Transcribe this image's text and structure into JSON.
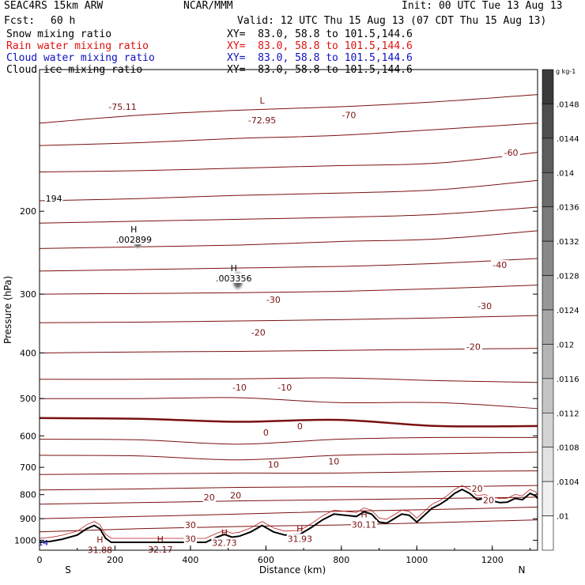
{
  "header": {
    "title": "SEAC4RS 15km ARW",
    "org": "NCAR/MMM",
    "init": "Init: 00 UTC Tue 13 Aug 13",
    "fcst_label": "Fcst:",
    "fcst_value": "60 h",
    "valid": "Valid: 12 UTC Thu 15 Aug 13 (07 CDT Thu 15 Aug 13)"
  },
  "fields": [
    {
      "name": "Snow mixing ratio",
      "xy": "XY=  83.0, 58.8 to 101.5,144.6",
      "color": "#000000"
    },
    {
      "name": "Rain water mixing ratio",
      "xy": "XY=  83.0, 58.8 to 101.5,144.6",
      "color": "#e01010"
    },
    {
      "name": "Cloud water mixing ratio",
      "xy": "XY=  83.0, 58.8 to 101.5,144.6",
      "color": "#1010c0"
    },
    {
      "name": "Cloud ice mixing ratio",
      "xy": "XY=  83.0, 58.8 to 101.5,144.6",
      "color": "#000000"
    }
  ],
  "chart_data": {
    "type": "line",
    "xlabel": "Distance (km)",
    "ylabel": "Pressure (hPa)",
    "xlim": [
      0,
      1320
    ],
    "ylim": [
      1050,
      100
    ],
    "y_log": true,
    "x_ticks": [
      "0",
      "200",
      "400",
      "600",
      "800",
      "1000",
      "1200"
    ],
    "y_ticks": [
      "200",
      "300",
      "400",
      "500",
      "600",
      "700",
      "800",
      "900",
      "1000"
    ],
    "x_end_labels": {
      "left": "S",
      "right": "N"
    },
    "isotherm_color": "#7a1010",
    "isotherms": [
      {
        "p": [
          130,
          125,
          122,
          120,
          117,
          113
        ],
        "lw": 1
      },
      {
        "p": [
          145,
          143,
          140,
          138,
          134,
          130
        ],
        "lw": 1
      },
      {
        "p": [
          165,
          164,
          162,
          160,
          158,
          150
        ],
        "lw": 1
      },
      {
        "p": [
          190,
          188,
          185,
          183,
          180,
          172
        ],
        "lw": 1
      },
      {
        "p": [
          212,
          210,
          208,
          206,
          203,
          196
        ],
        "lw": 1
      },
      {
        "p": [
          240,
          238,
          236,
          232,
          229,
          220
        ],
        "lw": 1
      },
      {
        "p": [
          268,
          266,
          264,
          262,
          258,
          252
        ],
        "lw": 1
      },
      {
        "p": [
          300,
          299,
          298,
          296,
          292,
          287
        ],
        "lw": 1
      },
      {
        "p": [
          345,
          344,
          342,
          340,
          337,
          333
        ],
        "lw": 1
      },
      {
        "p": [
          400,
          398,
          397,
          395,
          393,
          391
        ],
        "lw": 1
      },
      {
        "p": [
          455,
          455,
          454,
          452,
          458,
          462
        ],
        "lw": 1
      },
      {
        "p": [
          500,
          500,
          498,
          510,
          510,
          525
        ],
        "lw": 1
      },
      {
        "p": [
          550,
          552,
          560,
          555,
          572,
          572
        ],
        "lw": 2.5
      },
      {
        "p": [
          610,
          612,
          625,
          610,
          605,
          605
        ],
        "lw": 1
      },
      {
        "p": [
          660,
          662,
          675,
          660,
          655,
          650
        ],
        "lw": 1
      },
      {
        "p": [
          725,
          722,
          720,
          720,
          715,
          712
        ],
        "lw": 1
      },
      {
        "p": [
          782,
          778,
          772,
          770,
          770,
          765
        ],
        "lw": 1
      },
      {
        "p": [
          838,
          832,
          825,
          820,
          815,
          810
        ],
        "lw": 1
      },
      {
        "p": [
          900,
          890,
          880,
          868,
          860,
          850
        ],
        "lw": 1
      },
      {
        "p": [
          960,
          945,
          935,
          928,
          917,
          905
        ],
        "lw": 1
      }
    ],
    "contour_labels": [
      {
        "text": "-75.11",
        "x": 220,
        "p": 120
      },
      {
        "text": "-72.95",
        "x": 590,
        "p": 128
      },
      {
        "text": "-70",
        "x": 820,
        "p": 125
      },
      {
        "text": "-60",
        "x": 1250,
        "p": 150
      },
      {
        "text": "-40",
        "x": 1220,
        "p": 260
      },
      {
        "text": "-30",
        "x": 620,
        "p": 308
      },
      {
        "text": "-30",
        "x": 1180,
        "p": 318
      },
      {
        "text": "-20",
        "x": 580,
        "p": 362
      },
      {
        "text": "-20",
        "x": 1150,
        "p": 388
      },
      {
        "text": "-10",
        "x": 530,
        "p": 473
      },
      {
        "text": "-10",
        "x": 650,
        "p": 473
      },
      {
        "text": "0",
        "x": 600,
        "p": 590
      },
      {
        "text": "0",
        "x": 690,
        "p": 572
      },
      {
        "text": "10",
        "x": 620,
        "p": 690
      },
      {
        "text": "10",
        "x": 780,
        "p": 680
      },
      {
        "text": "20",
        "x": 450,
        "p": 810
      },
      {
        "text": "20",
        "x": 520,
        "p": 803
      },
      {
        "text": "20",
        "x": 1160,
        "p": 776
      },
      {
        "text": "20",
        "x": 1190,
        "p": 822
      },
      {
        "text": "30",
        "x": 400,
        "p": 928
      },
      {
        "text": "30",
        "x": 400,
        "p": 993
      },
      {
        "text": "194",
        "x": 38,
        "p": 188
      }
    ],
    "extrema": [
      {
        "mark": "L",
        "text": "",
        "x": 590,
        "p": 118
      },
      {
        "mark": "H",
        "text": ".002899",
        "x": 250,
        "p": 222
      },
      {
        "mark": "H",
        "text": ".003356",
        "x": 515,
        "p": 268
      },
      {
        "mark": "H",
        "text": "31.88",
        "x": 160,
        "p": 1012
      },
      {
        "mark": "H",
        "text": "32.17",
        "x": 320,
        "p": 1010
      },
      {
        "mark": "H",
        "text": "32.73",
        "x": 490,
        "p": 977
      },
      {
        "mark": "H",
        "text": "31.93",
        "x": 690,
        "p": 958
      },
      {
        "mark": "H",
        "text": "30.11",
        "x": 860,
        "p": 895
      }
    ],
    "terrain": [
      [
        0,
        1010
      ],
      [
        30,
        1005
      ],
      [
        60,
        995
      ],
      [
        100,
        975
      ],
      [
        125,
        945
      ],
      [
        145,
        930
      ],
      [
        160,
        945
      ],
      [
        175,
        990
      ],
      [
        190,
        1010
      ],
      [
        220,
        1010
      ],
      [
        300,
        1010
      ],
      [
        360,
        1010
      ],
      [
        420,
        1010
      ],
      [
        440,
        1010
      ],
      [
        470,
        985
      ],
      [
        490,
        972
      ],
      [
        510,
        985
      ],
      [
        530,
        980
      ],
      [
        560,
        960
      ],
      [
        590,
        930
      ],
      [
        620,
        960
      ],
      [
        650,
        975
      ],
      [
        690,
        972
      ],
      [
        720,
        940
      ],
      [
        750,
        905
      ],
      [
        780,
        880
      ],
      [
        810,
        885
      ],
      [
        840,
        890
      ],
      [
        860,
        870
      ],
      [
        880,
        880
      ],
      [
        900,
        915
      ],
      [
        920,
        920
      ],
      [
        940,
        900
      ],
      [
        960,
        880
      ],
      [
        980,
        885
      ],
      [
        1000,
        915
      ],
      [
        1020,
        885
      ],
      [
        1040,
        855
      ],
      [
        1060,
        840
      ],
      [
        1080,
        820
      ],
      [
        1100,
        795
      ],
      [
        1120,
        780
      ],
      [
        1140,
        795
      ],
      [
        1160,
        820
      ],
      [
        1180,
        815
      ],
      [
        1200,
        825
      ],
      [
        1220,
        832
      ],
      [
        1240,
        830
      ],
      [
        1260,
        815
      ],
      [
        1280,
        820
      ],
      [
        1300,
        795
      ],
      [
        1315,
        805
      ],
      [
        1320,
        815
      ]
    ],
    "colorbar": {
      "unit": "g kg-1",
      "labels": [
        ".0148",
        ".0144",
        ".014",
        ".0136",
        ".0132",
        ".0128",
        ".0124",
        ".012",
        ".0116",
        ".0112",
        ".0108",
        ".0104",
        ".01"
      ],
      "colors": [
        "#3a3a3a",
        "#4e4e4e",
        "#5d5d5d",
        "#6b6b6b",
        "#7a7a7a",
        "#888888",
        "#979797",
        "#a6a6a6",
        "#b5b5b5",
        "#c4c4c4",
        "#d3d3d3",
        "#e2e2e2",
        "#f0f0f0",
        "#ffffff"
      ]
    },
    "blue_label": {
      "text": "14",
      "x": 10,
      "p": 1010
    }
  }
}
